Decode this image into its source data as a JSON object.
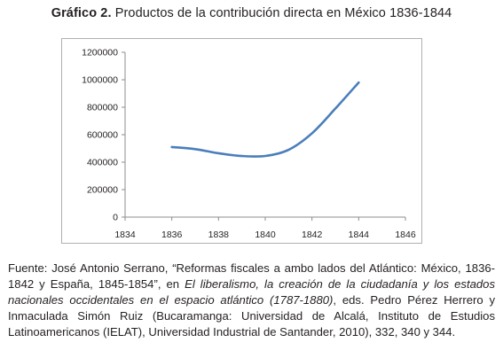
{
  "figure": {
    "title_prefix": "Gráfico 2.",
    "title_text": " Productos de la contribución directa en México 1836-1844"
  },
  "chart_data": {
    "type": "line",
    "title": "Gráfico 2. Productos de la contribución directa en México 1836-1844",
    "xlabel": "",
    "ylabel": "",
    "xlim": [
      1834,
      1846
    ],
    "ylim": [
      0,
      1200000
    ],
    "xticks": [
      "1834",
      "1836",
      "1838",
      "1840",
      "1842",
      "1844",
      "1846"
    ],
    "yticks": [
      "0",
      "200000",
      "400000",
      "600000",
      "800000",
      "1000000",
      "1200000"
    ],
    "grid": false,
    "legend": "none",
    "smooth": true,
    "line_color": "#4a7ebb",
    "series": [
      {
        "x": [
          1836,
          1837,
          1838,
          1839,
          1840,
          1841,
          1842,
          1843,
          1844
        ],
        "values": [
          510000,
          495000,
          465000,
          445000,
          445000,
          490000,
          610000,
          790000,
          980000
        ]
      }
    ]
  },
  "source": {
    "part1": "Fuente: José Antonio Serrano, “Reformas fiscales a ambo lados del Atlántico: México, 1836-1842 y España, 1845-1854”, en ",
    "book": "El liberalismo, la creación de la ciudadanía y los estados nacionales occidentales en el espacio atlántico (1787-1880)",
    "part2": ", eds. Pedro Pérez Herrero y Inmaculada Simón Ruiz (Bucaramanga: Universidad de Alcalá, Instituto de Estudios Latinoamericanos (IELAT), Universidad Industrial de Santander, 2010), 332, 340 y 344."
  }
}
